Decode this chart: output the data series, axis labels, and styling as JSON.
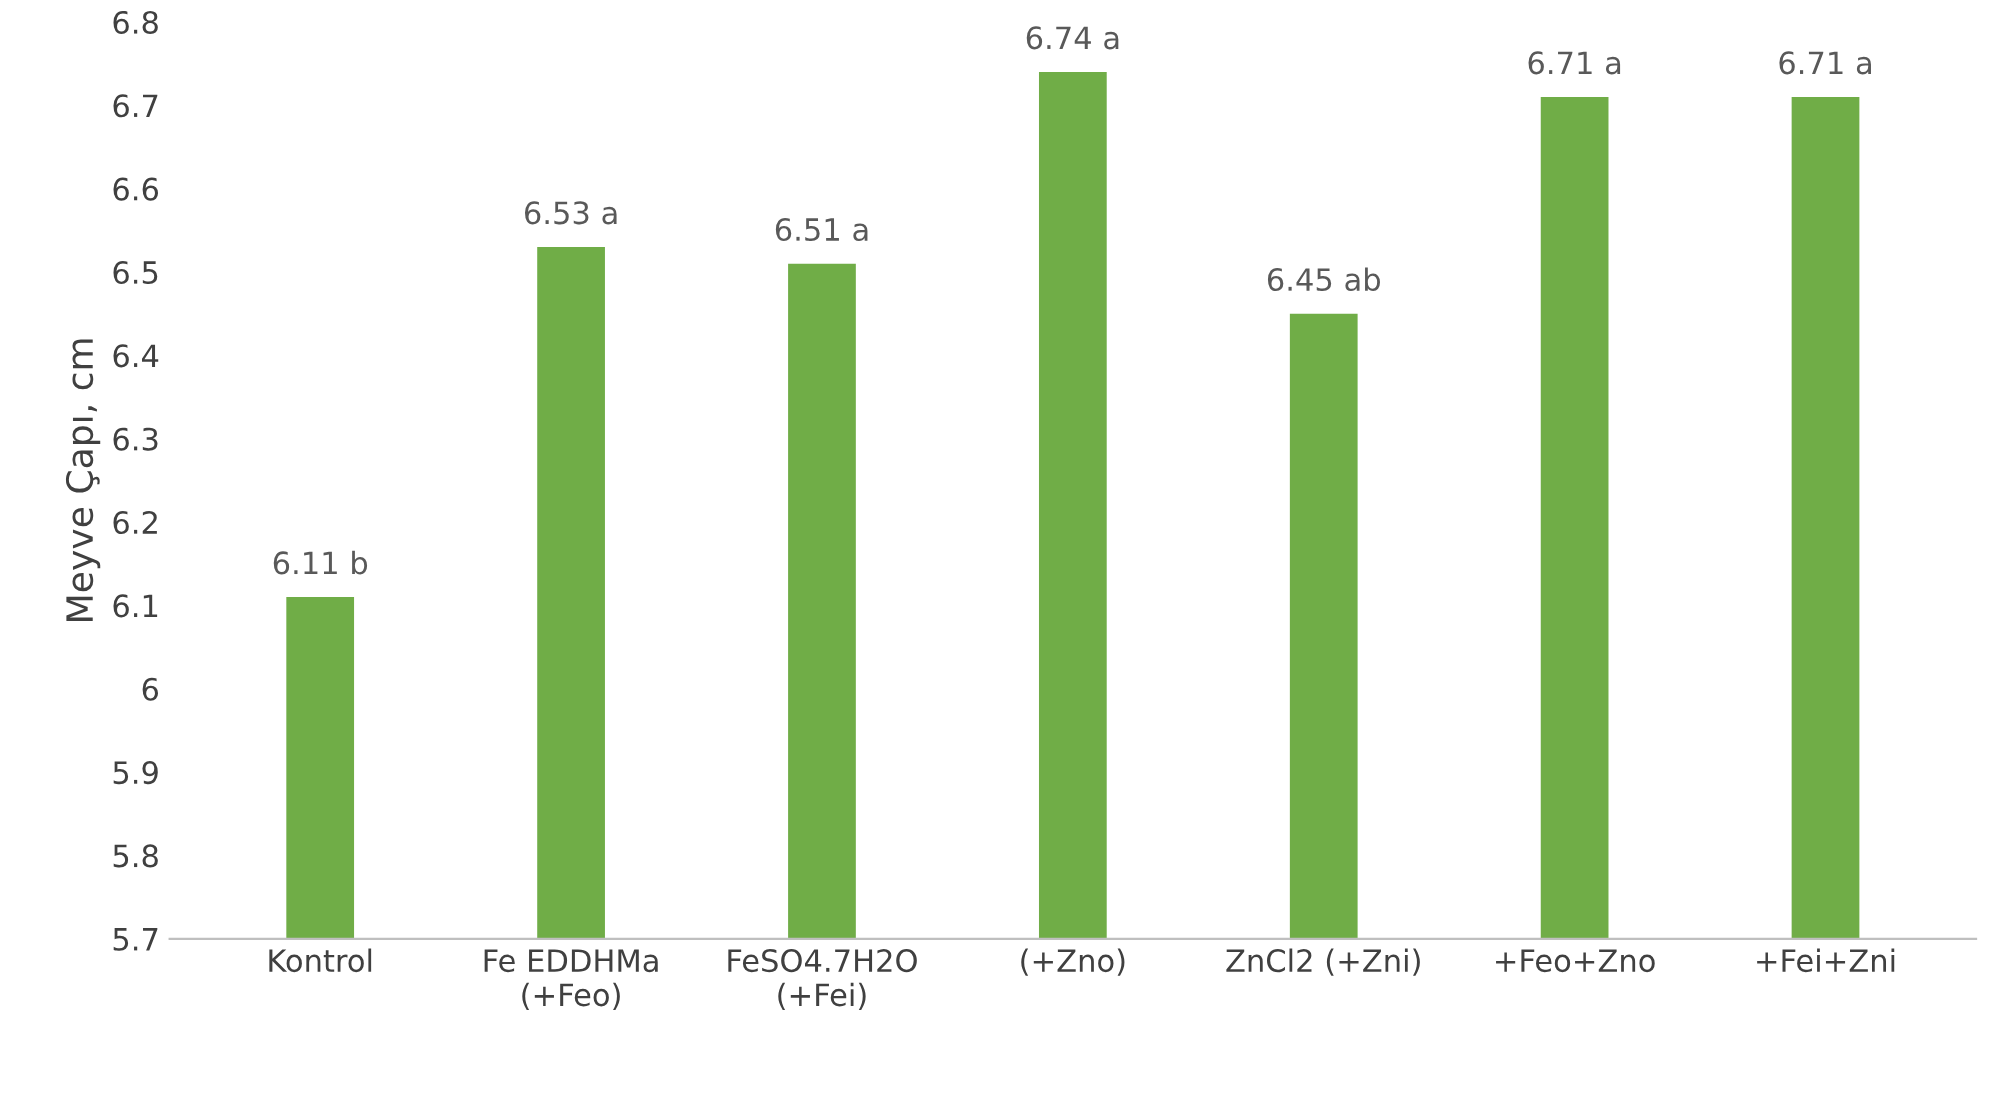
{
  "chart_data": {
    "type": "bar",
    "ylabel": "Meyve Çapı, cm",
    "categories": [
      "Kontrol",
      "Fe EDDHMa\n(+Feo)",
      "FeSO4.7H2O\n(+Fei)",
      "(+Zno)",
      "ZnCl2 (+Zni)",
      "+Feo+Zno",
      "+Fei+Zni"
    ],
    "values": [
      6.11,
      6.53,
      6.51,
      6.74,
      6.45,
      6.71,
      6.71
    ],
    "value_labels": [
      "6.11 b",
      "6.53 a",
      "6.51 a",
      "6.74 a",
      "6.45 ab",
      "6.71 a",
      "6.71 a"
    ],
    "color": "#70ad47",
    "ylim": [
      5.7,
      6.8
    ],
    "yticks": [
      5.7,
      5.8,
      5.9,
      6,
      6.1,
      6.2,
      6.3,
      6.4,
      6.5,
      6.6,
      6.7,
      6.8
    ],
    "grid": false,
    "legend": false
  }
}
